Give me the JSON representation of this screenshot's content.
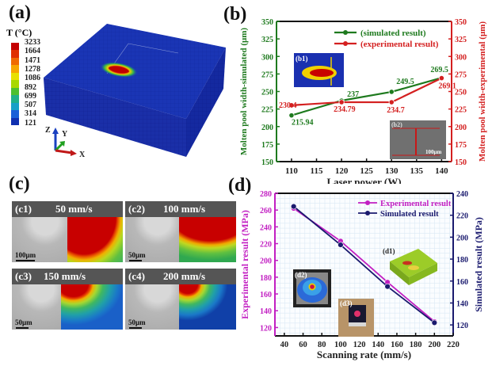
{
  "panels": {
    "a": {
      "label": "(a)",
      "colorbar_title": "T (°C)",
      "colorbar_ticks": [
        "3233",
        "1664",
        "1471",
        "1278",
        "1086",
        "892",
        "699",
        "507",
        "314",
        "121"
      ],
      "colorbar_colors": [
        "#c40000",
        "#e03000",
        "#f06a00",
        "#f7a600",
        "#e8e000",
        "#a8d800",
        "#4cc030",
        "#20b08a",
        "#18a0c8",
        "#1a60d8",
        "#1030b0"
      ],
      "axes_triad": {
        "z": "Z",
        "y": "Y",
        "x": "X"
      }
    },
    "b": {
      "label": "(b)",
      "inset1": "(b1)",
      "inset2": "(b2)",
      "inset2_scale": "100μm"
    },
    "c": {
      "label": "(c)",
      "subpanels": [
        {
          "id": "(c1)",
          "speed": "50 mm/s",
          "scale": "100μm"
        },
        {
          "id": "(c2)",
          "speed": "100 mm/s",
          "scale": "50μm"
        },
        {
          "id": "(c3)",
          "speed": "150 mm/s",
          "scale": "50μm"
        },
        {
          "id": "(c4)",
          "speed": "200 mm/s",
          "scale": "50μm"
        }
      ]
    },
    "d": {
      "label": "(d)",
      "inset1": "(d1)",
      "inset2": "(d2)",
      "inset3": "(d3)"
    }
  },
  "chart_data": [
    {
      "id": "b",
      "type": "line",
      "xlabel": "Laser power (W)",
      "ylabel_left": "Molten pool width-simulated (μm)",
      "ylabel_right": "Molten pool width-experimental (μm)",
      "x": [
        110,
        120,
        130,
        140
      ],
      "xlim": [
        107,
        142
      ],
      "xticks": [
        110,
        115,
        120,
        125,
        130,
        135,
        140
      ],
      "ylim_left": [
        150,
        350
      ],
      "ylim_right": [
        150,
        350
      ],
      "yticks": [
        150,
        175,
        200,
        225,
        250,
        275,
        300,
        325,
        350
      ],
      "legend_position": "top-right",
      "series": [
        {
          "name": "(simulated result)",
          "axis": "left",
          "color": "#1e7a1e",
          "values": [
            215.94,
            237,
            249.5,
            269.5
          ],
          "labels": [
            "215.94",
            "237",
            "249.5",
            "269.5"
          ]
        },
        {
          "name": "(experimental result)",
          "axis": "right",
          "color": "#d42020",
          "values": [
            230.4,
            234.79,
            234.7,
            269.1
          ],
          "labels": [
            "230.4",
            "234.79",
            "234.7",
            "269.1"
          ]
        }
      ]
    },
    {
      "id": "d",
      "type": "line",
      "xlabel": "Scanning rate (mm/s)",
      "ylabel_left": "Experimental result (MPa)",
      "ylabel_right": "Simulated result (MPa)",
      "x": [
        50,
        100,
        150,
        200
      ],
      "xlim": [
        30,
        220
      ],
      "xticks": [
        40,
        60,
        80,
        100,
        120,
        140,
        160,
        180,
        200,
        220
      ],
      "ylim_left": [
        110,
        280
      ],
      "yticks_left": [
        120,
        140,
        160,
        180,
        200,
        220,
        240,
        260,
        280
      ],
      "ylim_right": [
        110,
        240
      ],
      "yticks_right": [
        120,
        140,
        160,
        180,
        200,
        220,
        240
      ],
      "grid": true,
      "legend_position": "top-right",
      "series": [
        {
          "name": "Experimental result",
          "axis": "left",
          "color": "#c21fc2",
          "values": [
            262,
            223,
            174,
            127
          ]
        },
        {
          "name": "Simulated result",
          "axis": "right",
          "color": "#1a1a6e",
          "values": [
            228,
            193,
            155,
            122
          ]
        }
      ]
    }
  ]
}
